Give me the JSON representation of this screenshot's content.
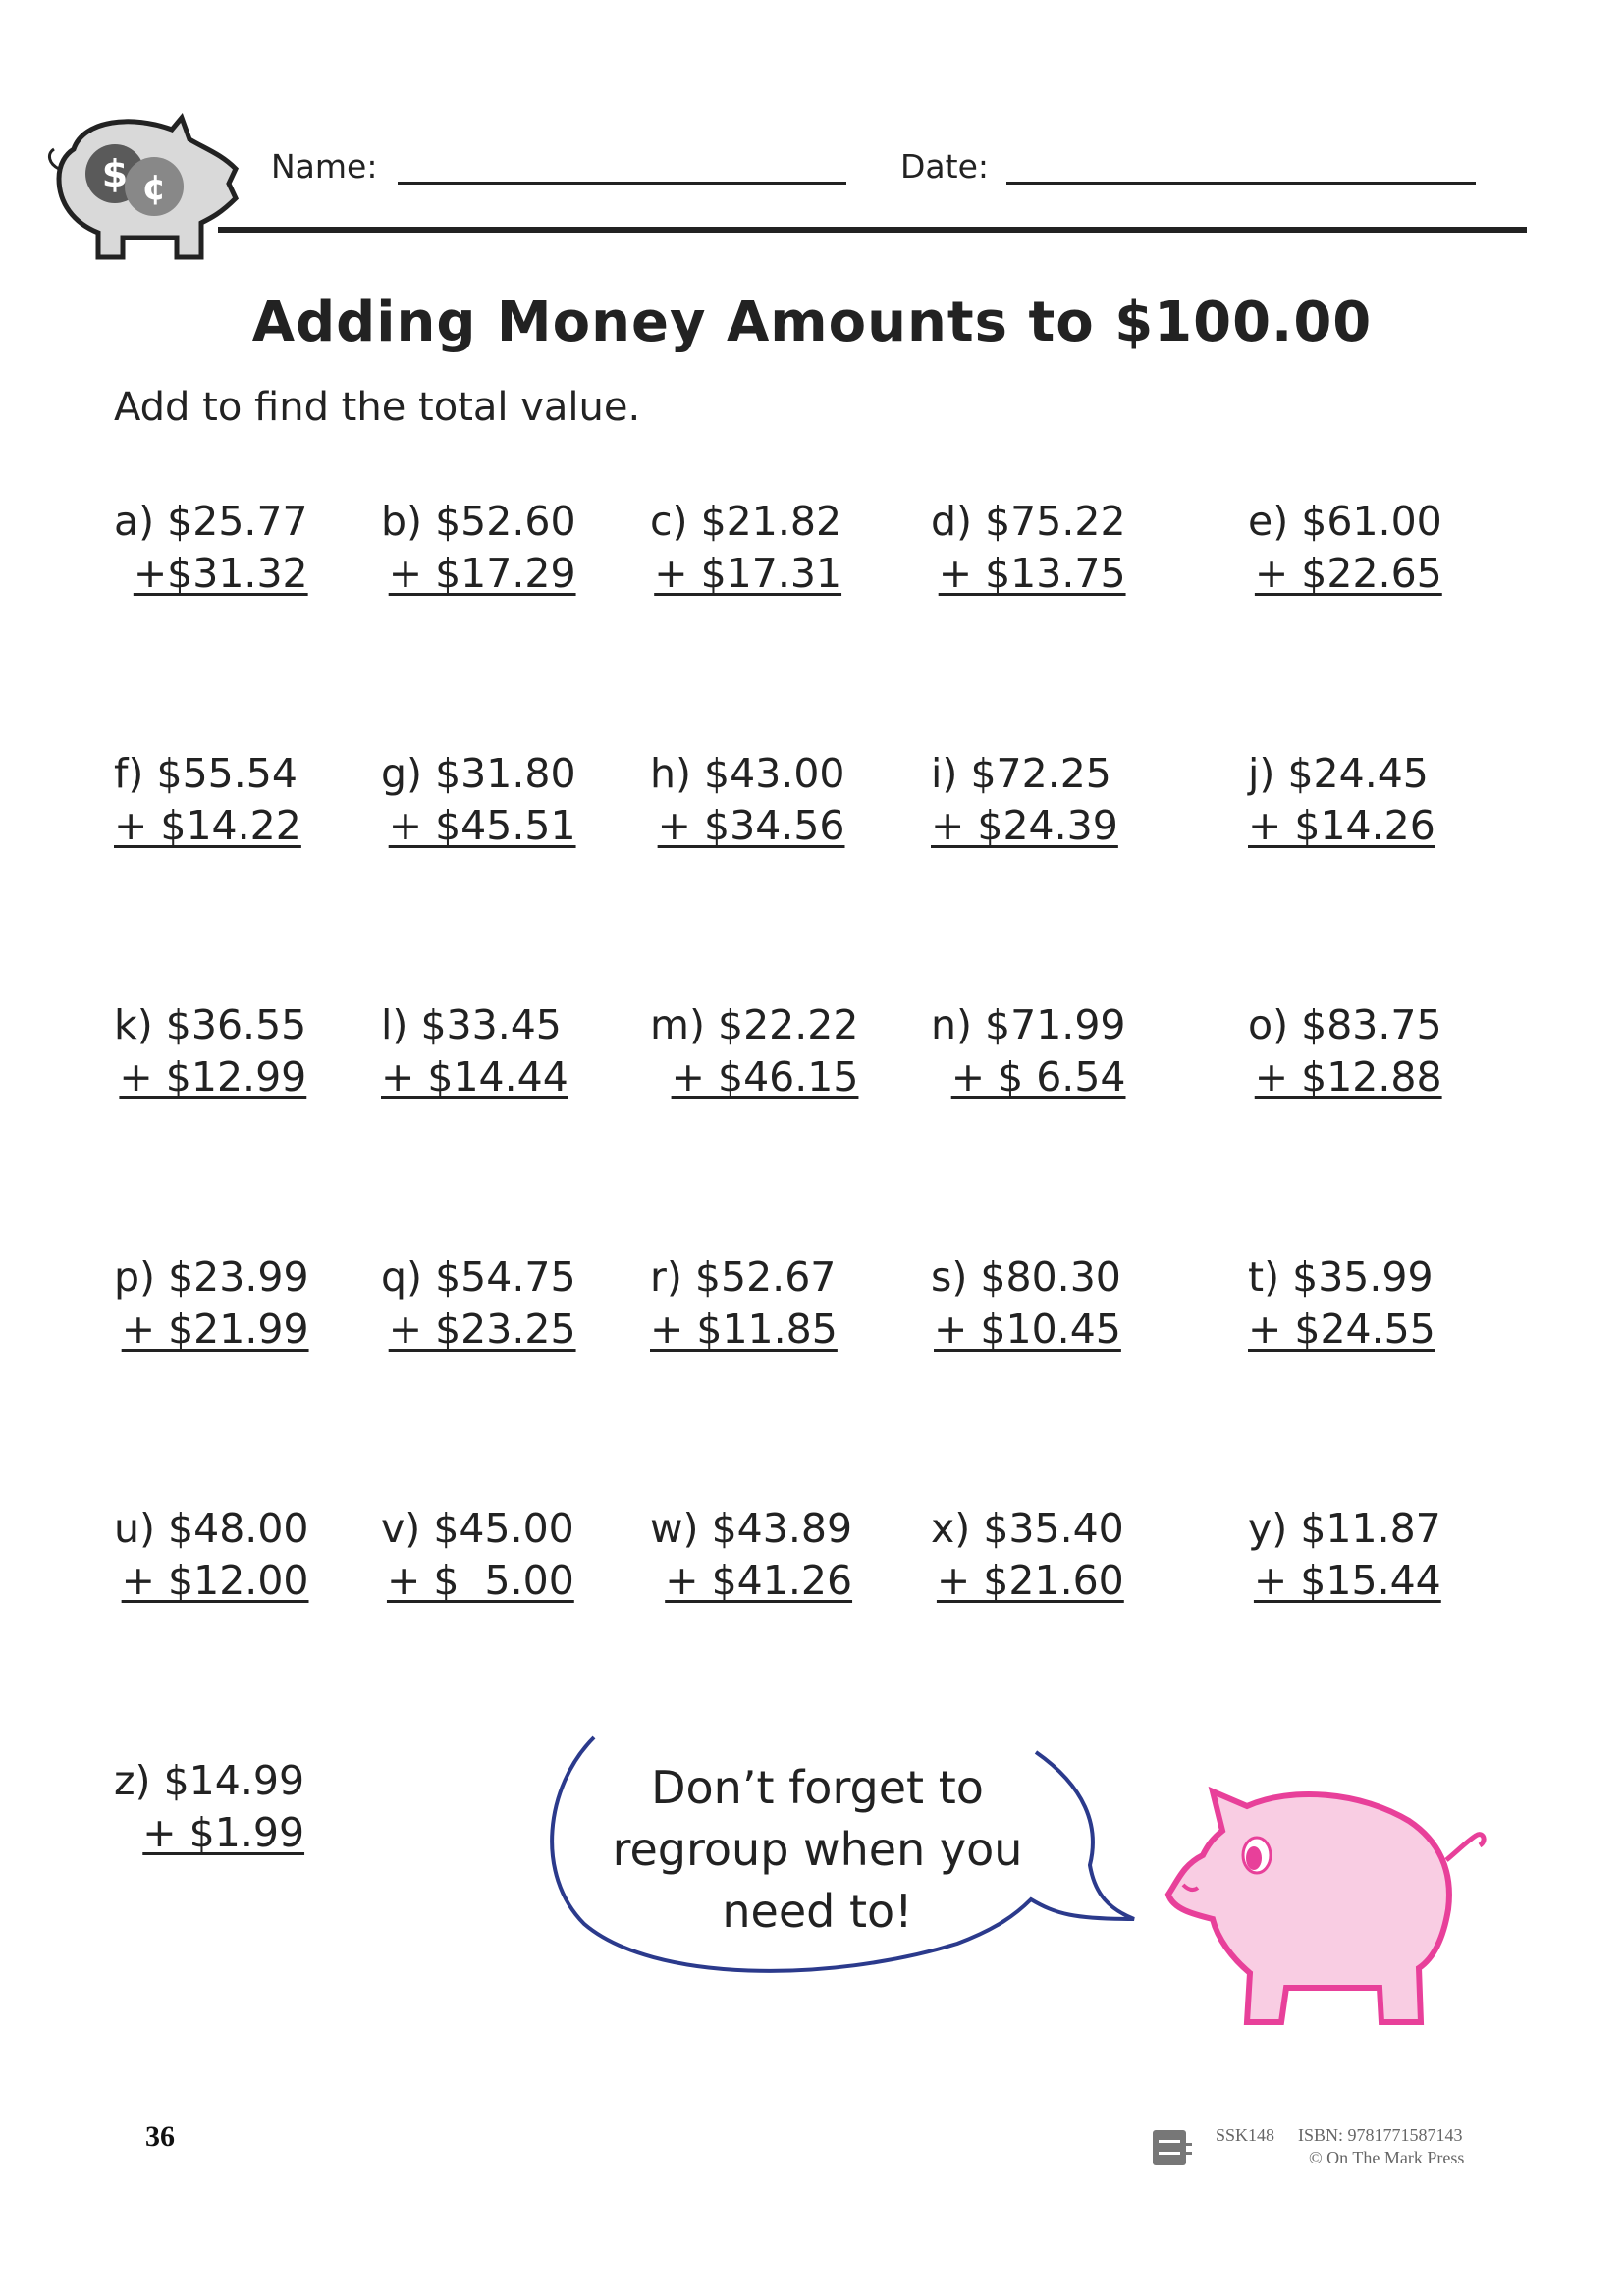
{
  "header": {
    "name_label": "Name:",
    "date_label": "Date:"
  },
  "title": "Adding Money Amounts to $100.00",
  "instructions": "Add to find the total value.",
  "problems": [
    {
      "label": "a)",
      "top": "$25.77",
      "bottom": "+$31.32"
    },
    {
      "label": "b)",
      "top": "$52.60",
      "bottom": "+ $17.29"
    },
    {
      "label": "c)",
      "top": "$21.82",
      "bottom": "+ $17.31"
    },
    {
      "label": "d)",
      "top": "$75.22",
      "bottom": "+ $13.75"
    },
    {
      "label": "e)",
      "top": "$61.00",
      "bottom": "+ $22.65"
    },
    {
      "label": "f)",
      "top": "$55.54",
      "bottom": "+ $14.22"
    },
    {
      "label": "g)",
      "top": "$31.80",
      "bottom": "+ $45.51"
    },
    {
      "label": "h)",
      "top": "$43.00",
      "bottom": "+ $34.56"
    },
    {
      "label": "i)",
      "top": "$72.25",
      "bottom": "+ $24.39"
    },
    {
      "label": "j)",
      "top": "$24.45",
      "bottom": "+ $14.26"
    },
    {
      "label": "k)",
      "top": "$36.55",
      "bottom": "+ $12.99"
    },
    {
      "label": "l)",
      "top": "$33.45",
      "bottom": "+ $14.44"
    },
    {
      "label": "m)",
      "top": "$22.22",
      "bottom": "+ $46.15"
    },
    {
      "label": "n)",
      "top": "$71.99",
      "bottom": "+ $ 6.54"
    },
    {
      "label": "o)",
      "top": "$83.75",
      "bottom": "+ $12.88"
    },
    {
      "label": "p)",
      "top": "$23.99",
      "bottom": "+ $21.99"
    },
    {
      "label": "q)",
      "top": "$54.75",
      "bottom": "+ $23.25"
    },
    {
      "label": "r)",
      "top": "$52.67",
      "bottom": "+ $11.85"
    },
    {
      "label": "s)",
      "top": "$80.30",
      "bottom": "+ $10.45"
    },
    {
      "label": "t)",
      "top": "$35.99",
      "bottom": "+ $24.55"
    },
    {
      "label": "u)",
      "top": "$48.00",
      "bottom": "+ $12.00"
    },
    {
      "label": "v)",
      "top": "$45.00",
      "bottom": "+ $  5.00"
    },
    {
      "label": "w)",
      "top": "$43.89",
      "bottom": "+ $41.26"
    },
    {
      "label": "x)",
      "top": "$35.40",
      "bottom": "+ $21.60"
    },
    {
      "label": "y)",
      "top": "$11.87",
      "bottom": "+ $15.44"
    },
    {
      "label": "z)",
      "top": "$14.99",
      "bottom": "+ $1.99"
    }
  ],
  "speech_bubble": {
    "line1": "Don’t forget to",
    "line2": "regroup when you",
    "line3": "need to!"
  },
  "footer": {
    "page_number": "36",
    "code": "SSK148",
    "isbn": "ISBN: 9781771587143",
    "copyright": "© On The Mark Press"
  },
  "colors": {
    "pig_pink": "#e8409a",
    "pig_fill": "#f9cde3",
    "bubble_outline": "#2b3a8c",
    "logo_grey": "#d9d9d9"
  }
}
